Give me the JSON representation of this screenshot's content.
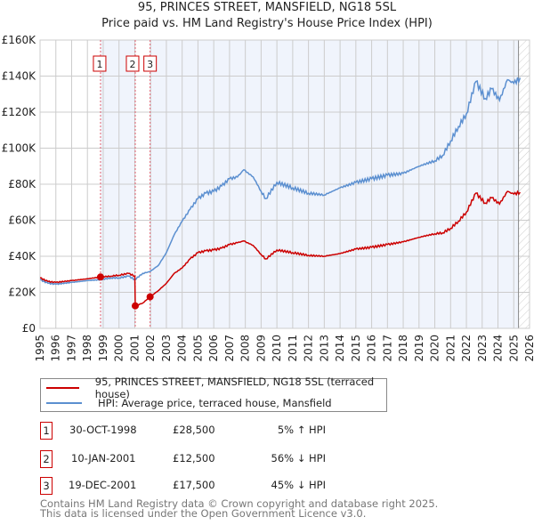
{
  "title": "95, PRINCES STREET, MANSFIELD, NG18 5SL",
  "subtitle": "Price paid vs. HM Land Registry's House Price Index (HPI)",
  "chart_data": {
    "type": "line",
    "xlim": [
      1995,
      2026
    ],
    "ylim": [
      0,
      160000
    ],
    "x_ticks": [
      "1995",
      "1996",
      "1997",
      "1998",
      "1999",
      "2000",
      "2001",
      "2002",
      "2003",
      "2004",
      "2005",
      "2006",
      "2007",
      "2008",
      "2009",
      "2010",
      "2011",
      "2012",
      "2013",
      "2014",
      "2015",
      "2016",
      "2017",
      "2018",
      "2019",
      "2020",
      "2021",
      "2022",
      "2023",
      "2024",
      "2025",
      "2026"
    ],
    "y_ticks": [
      "£0",
      "£20K",
      "£40K",
      "£60K",
      "£80K",
      "£100K",
      "£120K",
      "£140K",
      "£160K"
    ],
    "y_tick_values": [
      0,
      20000,
      40000,
      60000,
      80000,
      100000,
      120000,
      140000,
      160000
    ],
    "grid": true,
    "series": [
      {
        "name": "95, PRINCES STREET, MANSFIELD, NG18 5SL (terraced house)",
        "color": "#cc0000",
        "x": [
          1995,
          1995.5,
          1996,
          1997,
          1998,
          1998.83,
          1999.5,
          2000,
          2000.6,
          2001.0,
          2001.03,
          2001.5,
          2001.97,
          2002.5,
          2003,
          2003.5,
          2004,
          2004.5,
          2005,
          2005.5,
          2006,
          2006.5,
          2007,
          2007.5,
          2007.9,
          2008.5,
          2009,
          2009.3,
          2010,
          2011,
          2012,
          2013,
          2014,
          2015,
          2016,
          2017,
          2018,
          2019,
          2020,
          2020.5,
          2021,
          2021.5,
          2022,
          2022.6,
          2023.2,
          2023.6,
          2024.1,
          2024.6,
          2025.0,
          2025.4
        ],
        "y": [
          28000,
          26000,
          25500,
          26500,
          27500,
          28500,
          29000,
          29500,
          30500,
          29000,
          12500,
          14000,
          17500,
          21000,
          25000,
          30500,
          33500,
          38500,
          42000,
          43000,
          43500,
          44500,
          46500,
          47500,
          48500,
          46000,
          41000,
          38500,
          43500,
          42000,
          40500,
          40000,
          41500,
          44000,
          45000,
          46500,
          48000,
          50500,
          52500,
          53000,
          55500,
          59500,
          64500,
          75000,
          69500,
          72500,
          69000,
          76000,
          74500,
          75500
        ]
      },
      {
        "name": "HPI: Average price, terraced house, Mansfield",
        "color": "#5b8fd0",
        "x": [
          1995,
          1995.5,
          1996,
          1997,
          1998,
          1998.83,
          1999.5,
          2000,
          2000.6,
          2001.0,
          2001.5,
          2001.97,
          2002.5,
          2003,
          2003.5,
          2004,
          2004.5,
          2005,
          2005.5,
          2006,
          2006.5,
          2007,
          2007.5,
          2007.9,
          2008.5,
          2009,
          2009.3,
          2010,
          2011,
          2012,
          2013,
          2014,
          2015,
          2016,
          2017,
          2018,
          2019,
          2020,
          2020.5,
          2021,
          2021.5,
          2022,
          2022.6,
          2023.2,
          2023.6,
          2024.1,
          2024.6,
          2025.0,
          2025.4
        ],
        "y": [
          27000,
          25000,
          24500,
          25500,
          26500,
          27000,
          28000,
          28000,
          29000,
          27000,
          30500,
          31500,
          35000,
          42000,
          52000,
          59500,
          66000,
          72000,
          75000,
          76000,
          79000,
          83000,
          84000,
          88000,
          84000,
          76000,
          72000,
          81000,
          78000,
          75000,
          74000,
          78000,
          81000,
          83000,
          85000,
          86000,
          90000,
          93000,
          96000,
          104000,
          112000,
          119000,
          137000,
          127500,
          133000,
          126500,
          138000,
          136000,
          139000
        ]
      }
    ],
    "sales": [
      {
        "label": "1",
        "x": 1998.83,
        "y": 28500
      },
      {
        "label": "2",
        "x": 2001.03,
        "y": 12500
      },
      {
        "label": "3",
        "x": 2001.97,
        "y": 17500
      }
    ],
    "shaded_ranges": [
      [
        1998.83,
        2001.03
      ],
      [
        2001.97,
        2025.3
      ]
    ],
    "hatched_from": 2025.3
  },
  "legend": [
    {
      "label": "95, PRINCES STREET, MANSFIELD, NG18 5SL (terraced house)",
      "color": "#cc0000"
    },
    {
      "label": "HPI: Average price, terraced house, Mansfield",
      "color": "#5b8fd0"
    }
  ],
  "transactions": [
    {
      "num": "1",
      "date": "30-OCT-1998",
      "price": "£28,500",
      "hpi": "5% ↑ HPI"
    },
    {
      "num": "2",
      "date": "10-JAN-2001",
      "price": "£12,500",
      "hpi": "56% ↓ HPI"
    },
    {
      "num": "3",
      "date": "19-DEC-2001",
      "price": "£17,500",
      "hpi": "45% ↓ HPI"
    }
  ],
  "footer": {
    "line1": "Contains HM Land Registry data © Crown copyright and database right 2025.",
    "line2": "This data is licensed under the Open Government Licence v3.0."
  }
}
